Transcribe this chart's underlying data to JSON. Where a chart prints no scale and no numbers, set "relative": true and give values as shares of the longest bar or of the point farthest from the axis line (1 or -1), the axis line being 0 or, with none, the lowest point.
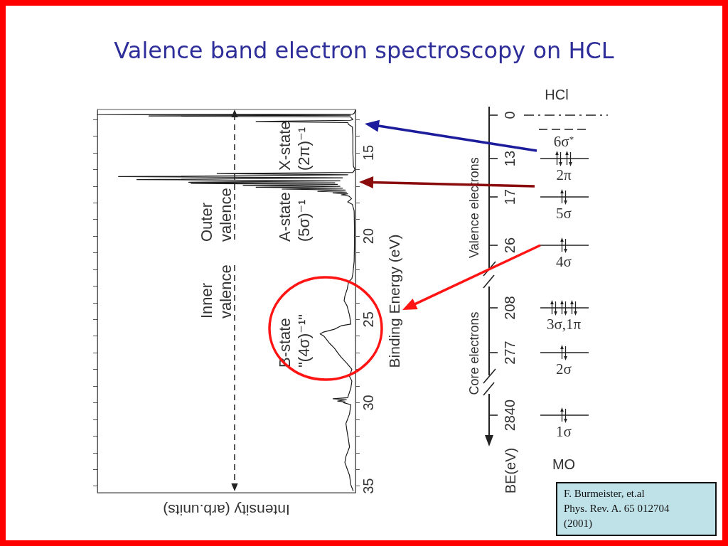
{
  "chart_data": [
    {
      "type": "line",
      "title": "Valence band electron spectroscopy on HCL",
      "xlabel": "Intensity (arb.units)",
      "ylabel": "Binding Energy (eV)",
      "orientation": "horizontal",
      "relative": true,
      "color": "#1a1a1a",
      "marker": "none",
      "x": [
        12.45,
        12.62,
        12.68,
        12.71,
        12.75,
        12.79,
        12.84,
        13.0,
        13.05,
        13.12,
        13.18,
        13.3,
        13.45,
        14.0,
        15.0,
        15.8,
        16.0,
        16.18,
        16.25,
        16.32,
        16.43,
        16.5,
        16.61,
        16.68,
        16.77,
        16.8,
        16.84,
        16.9,
        16.95,
        17.01,
        17.07,
        17.12,
        17.18,
        17.24,
        17.31,
        17.36,
        17.41,
        17.46,
        17.52,
        17.6,
        17.75,
        17.95,
        18.1,
        18.5,
        19.5,
        20.5,
        21.5,
        22.26,
        22.55,
        22.76,
        23.18,
        23.6,
        23.88,
        24.17,
        24.74,
        25.28,
        25.38,
        25.59,
        25.76,
        25.87,
        25.98,
        26.15,
        26.44,
        26.72,
        27.0,
        27.28,
        27.64,
        27.99,
        28.42,
        28.7,
        29.13,
        29.55,
        29.7,
        29.76,
        29.82,
        29.9,
        29.95,
        30.0,
        30.12,
        30.68,
        31.25,
        31.68,
        32.24,
        32.66,
        33.23,
        33.59,
        33.94,
        34.36,
        34.93,
        35.28
      ],
      "values": [
        0,
        -0.005,
        -0.01,
        -1.0,
        -0.02,
        -0.8,
        -0.02,
        -0.01,
        -0.02,
        -0.385,
        -0.03,
        -0.027,
        -0.012,
        -0.01,
        -0.01,
        -0.008,
        -0.002,
        -0.01,
        -0.536,
        -0.03,
        -0.918,
        -0.05,
        -0.847,
        -0.06,
        -0.646,
        -0.08,
        -0.637,
        -0.07,
        -0.435,
        -0.06,
        -0.385,
        -0.05,
        -0.284,
        -0.04,
        -0.146,
        -0.035,
        -0.087,
        -0.03,
        -0.055,
        -0.025,
        -0.015,
        -0.03,
        -0.012,
        -0.005,
        -0.004,
        -0.004,
        -0.005,
        -0.01,
        -0.014,
        -0.027,
        -0.032,
        -0.041,
        -0.044,
        -0.033,
        -0.023,
        -0.018,
        -0.055,
        -0.082,
        -0.124,
        -0.137,
        -0.124,
        -0.115,
        -0.1,
        -0.082,
        -0.069,
        -0.055,
        -0.033,
        -0.014,
        -0.023,
        -0.014,
        -0.018,
        -0.027,
        -0.03,
        -0.087,
        -0.035,
        -0.069,
        -0.04,
        -0.046,
        -0.018,
        -0.023,
        -0.037,
        -0.033,
        -0.027,
        -0.023,
        -0.037,
        -0.041,
        -0.033,
        -0.023,
        -0.018,
        -0.009
      ],
      "ylim": [
        35.4,
        12.4
      ],
      "yticks": [
        {
          "value": 13,
          "label": null
        },
        {
          "value": 14,
          "label": null
        },
        15,
        {
          "value": 16,
          "label": null
        },
        {
          "value": 17,
          "label": null
        },
        {
          "value": 18,
          "label": null
        },
        {
          "value": 19,
          "label": null
        },
        20,
        {
          "value": 21,
          "label": null
        },
        {
          "value": 22,
          "label": null
        },
        {
          "value": 23,
          "label": null
        },
        {
          "value": 24,
          "label": null
        },
        25,
        {
          "value": 26,
          "label": null
        },
        {
          "value": 27,
          "label": null
        },
        {
          "value": 28,
          "label": null
        },
        {
          "value": 29,
          "label": null
        },
        30,
        {
          "value": 31,
          "label": null
        },
        {
          "value": 32,
          "label": null
        },
        {
          "value": 33,
          "label": null
        },
        {
          "value": 34,
          "label": null
        },
        35
      ],
      "annotations": [
        "X-state\n(2π)⁻¹",
        "A-state\n(5σ)⁻¹",
        "B-state\n\"(4σ)⁻¹\"",
        "Outer\nvalence",
        "Inner\nvalence",
        "F. Burmeister, et.al\nPhys. Rev. A. 65 012704\n(2001)"
      ]
    },
    {
      "type": "other",
      "title": "HCl",
      "xlabel": "MO",
      "ylabel": "BE(eV)",
      "data_labels": true,
      "categories": [
        null,
        "6σ$^{*}$",
        "2π",
        "5σ",
        "4σ",
        "3σ,1π",
        "2σ",
        "1σ"
      ],
      "values": [
        0,
        null,
        13,
        17,
        26,
        208,
        277,
        2840
      ],
      "annotations": [
        "Valence electrons",
        "Core electrons"
      ]
    }
  ]
}
